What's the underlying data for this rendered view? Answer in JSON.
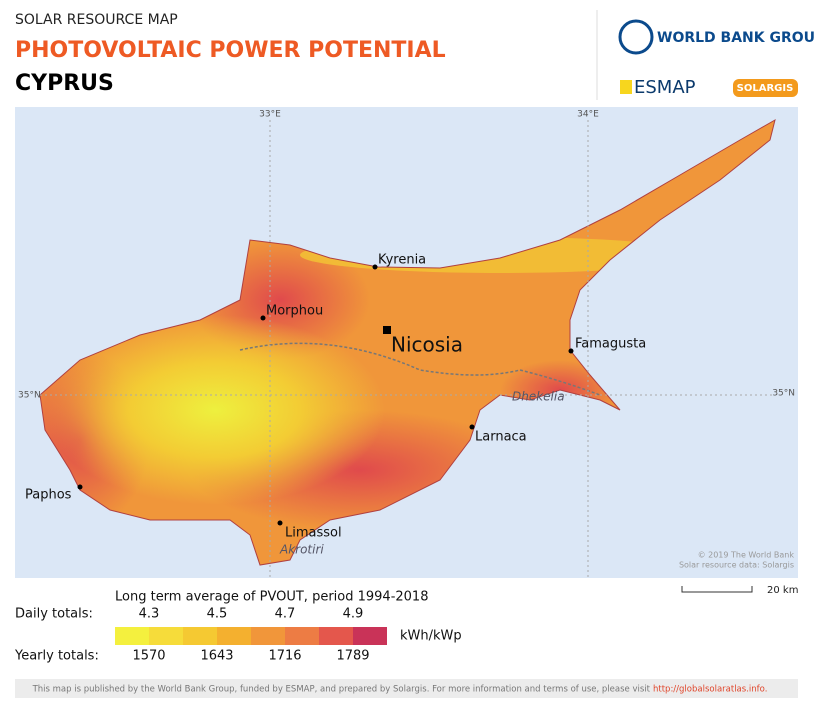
{
  "header": {
    "kicker": "SOLAR RESOURCE MAP",
    "title": "PHOTOVOLTAIC POWER POTENTIAL",
    "country": "CYPRUS"
  },
  "logos": {
    "world_bank": "WORLD BANK GROUP",
    "esmap": "ESMAP",
    "solargis": "SOLARGIS"
  },
  "map": {
    "graticule": {
      "lon1": "33°E",
      "lon2": "34°E",
      "lat_left": "35°N",
      "lat_right": "35°N"
    },
    "cities": [
      {
        "label": "Kyrenia"
      },
      {
        "label": "Morphou"
      },
      {
        "label": "Nicosia"
      },
      {
        "label": "Famagusta"
      },
      {
        "label": "Larnaca"
      },
      {
        "label": "Paphos"
      },
      {
        "label": "Limassol"
      }
    ],
    "areas": [
      "Dhekelia",
      "Akrotiri"
    ],
    "credits": [
      "© 2019 The World Bank",
      "Solar resource data: Solargis"
    ],
    "scale": "20 km"
  },
  "legend": {
    "title": "Long term average of PVOUT, period 1994-2018",
    "daily_label": "Daily totals:",
    "daily": [
      "4.3",
      "4.5",
      "4.7",
      "4.9"
    ],
    "unit": "kWh/kWp",
    "yearly_label": "Yearly totals:",
    "yearly": [
      "1570",
      "1643",
      "1716",
      "1789"
    ],
    "colors": [
      "#f4f03e",
      "#f6dc3a",
      "#f5c932",
      "#f4b02f",
      "#f1963a",
      "#ed7c44",
      "#e4574c",
      "#c93358"
    ]
  },
  "footer": {
    "text": "This map is published by the World Bank Group, funded by ESMAP, and prepared by Solargis. For more information and terms of use, please visit",
    "link": "http://globalsolaratlas.info."
  }
}
